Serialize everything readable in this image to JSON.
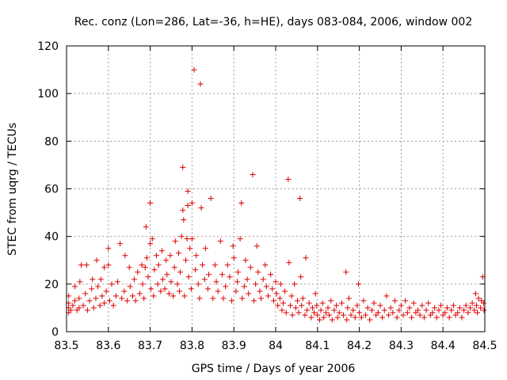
{
  "chart_data": {
    "type": "scatter",
    "title": "Rec. conz (Lon=286, Lat=-36, h=HE), days 083-084, 2006, window 002",
    "xlabel": "GPS time / Days of year 2006",
    "ylabel": "STEC from uqrg / TECUs",
    "xlim": [
      83.5,
      84.5
    ],
    "ylim": [
      0,
      120
    ],
    "grid": true,
    "marker": "+",
    "color": "#dd0000",
    "xticks": [
      83.5,
      83.6,
      83.7,
      83.8,
      83.9,
      84.0,
      84.1,
      84.2,
      84.3,
      84.4,
      84.5
    ],
    "xtick_labels": [
      "83.5",
      "83.6",
      "83.7",
      "83.8",
      "83.9",
      "84",
      "84.1",
      "84.2",
      "84.3",
      "84.4",
      "84.5"
    ],
    "yticks": [
      0,
      20,
      40,
      60,
      80,
      100,
      120
    ],
    "ytick_labels": [
      "0",
      "20",
      "40",
      "60",
      "80",
      "100",
      "120"
    ],
    "points": [
      [
        83.505,
        8
      ],
      [
        83.505,
        10
      ],
      [
        83.505,
        12
      ],
      [
        83.505,
        15
      ],
      [
        83.51,
        9
      ],
      [
        83.515,
        11
      ],
      [
        83.52,
        13
      ],
      [
        83.52,
        19
      ],
      [
        83.525,
        9
      ],
      [
        83.53,
        10
      ],
      [
        83.53,
        14
      ],
      [
        83.532,
        21
      ],
      [
        83.535,
        28
      ],
      [
        83.54,
        11
      ],
      [
        83.545,
        16
      ],
      [
        83.548,
        28
      ],
      [
        83.55,
        9
      ],
      [
        83.555,
        13
      ],
      [
        83.56,
        18
      ],
      [
        83.562,
        22
      ],
      [
        83.565,
        10
      ],
      [
        83.57,
        14
      ],
      [
        83.572,
        30
      ],
      [
        83.575,
        19
      ],
      [
        83.58,
        11
      ],
      [
        83.582,
        22
      ],
      [
        83.585,
        15
      ],
      [
        83.59,
        12
      ],
      [
        83.59,
        27
      ],
      [
        83.595,
        17
      ],
      [
        83.6,
        35
      ],
      [
        83.6,
        28
      ],
      [
        83.603,
        13
      ],
      [
        83.608,
        20
      ],
      [
        83.612,
        11
      ],
      [
        83.618,
        15
      ],
      [
        83.622,
        21
      ],
      [
        83.628,
        37
      ],
      [
        83.632,
        14
      ],
      [
        83.638,
        17
      ],
      [
        83.64,
        32
      ],
      [
        83.645,
        13
      ],
      [
        83.65,
        27
      ],
      [
        83.652,
        19
      ],
      [
        83.658,
        15
      ],
      [
        83.662,
        22
      ],
      [
        83.665,
        13
      ],
      [
        83.67,
        25
      ],
      [
        83.675,
        16
      ],
      [
        83.68,
        28
      ],
      [
        83.682,
        20
      ],
      [
        83.685,
        14
      ],
      [
        83.688,
        27
      ],
      [
        83.69,
        44
      ],
      [
        83.692,
        31
      ],
      [
        83.695,
        23
      ],
      [
        83.7,
        37
      ],
      [
        83.7,
        54
      ],
      [
        83.702,
        18
      ],
      [
        83.705,
        39
      ],
      [
        83.708,
        15
      ],
      [
        83.71,
        26
      ],
      [
        83.715,
        32
      ],
      [
        83.718,
        20
      ],
      [
        83.72,
        28
      ],
      [
        83.725,
        17
      ],
      [
        83.728,
        34
      ],
      [
        83.73,
        22
      ],
      [
        83.735,
        18
      ],
      [
        83.738,
        30
      ],
      [
        83.74,
        24
      ],
      [
        83.745,
        16
      ],
      [
        83.748,
        32
      ],
      [
        83.75,
        21
      ],
      [
        83.755,
        15
      ],
      [
        83.758,
        27
      ],
      [
        83.76,
        38
      ],
      [
        83.765,
        20
      ],
      [
        83.768,
        33
      ],
      [
        83.77,
        17
      ],
      [
        83.772,
        25
      ],
      [
        83.775,
        40
      ],
      [
        83.778,
        51
      ],
      [
        83.778,
        69
      ],
      [
        83.78,
        47
      ],
      [
        83.782,
        15
      ],
      [
        83.785,
        30
      ],
      [
        83.788,
        39
      ],
      [
        83.79,
        59
      ],
      [
        83.79,
        53
      ],
      [
        83.792,
        23
      ],
      [
        83.795,
        35
      ],
      [
        83.798,
        18
      ],
      [
        83.8,
        39
      ],
      [
        83.8,
        54
      ],
      [
        83.805,
        110
      ],
      [
        83.808,
        26
      ],
      [
        83.81,
        32
      ],
      [
        83.815,
        20
      ],
      [
        83.818,
        14
      ],
      [
        83.82,
        104
      ],
      [
        83.822,
        52
      ],
      [
        83.825,
        28
      ],
      [
        83.83,
        22
      ],
      [
        83.832,
        35
      ],
      [
        83.838,
        18
      ],
      [
        83.84,
        24
      ],
      [
        83.845,
        56
      ],
      [
        83.85,
        14
      ],
      [
        83.855,
        28
      ],
      [
        83.858,
        21
      ],
      [
        83.862,
        17
      ],
      [
        83.868,
        38
      ],
      [
        83.872,
        24
      ],
      [
        83.875,
        14
      ],
      [
        83.88,
        19
      ],
      [
        83.885,
        28
      ],
      [
        83.89,
        23
      ],
      [
        83.895,
        13
      ],
      [
        83.898,
        36
      ],
      [
        83.9,
        31
      ],
      [
        83.905,
        17
      ],
      [
        83.908,
        21
      ],
      [
        83.91,
        25
      ],
      [
        83.915,
        39
      ],
      [
        83.918,
        54
      ],
      [
        83.92,
        14
      ],
      [
        83.925,
        19
      ],
      [
        83.928,
        30
      ],
      [
        83.932,
        22
      ],
      [
        83.935,
        16
      ],
      [
        83.94,
        27
      ],
      [
        83.945,
        66
      ],
      [
        83.948,
        13
      ],
      [
        83.952,
        20
      ],
      [
        83.955,
        36
      ],
      [
        83.958,
        25
      ],
      [
        83.962,
        17
      ],
      [
        83.965,
        14
      ],
      [
        83.97,
        22
      ],
      [
        83.975,
        28
      ],
      [
        83.978,
        19
      ],
      [
        83.982,
        15
      ],
      [
        83.988,
        24
      ],
      [
        83.992,
        18
      ],
      [
        83.995,
        13
      ],
      [
        84.0,
        21
      ],
      [
        84.002,
        16
      ],
      [
        84.005,
        11
      ],
      [
        84.01,
        14
      ],
      [
        84.012,
        20
      ],
      [
        84.015,
        9
      ],
      [
        84.018,
        12
      ],
      [
        84.022,
        17
      ],
      [
        84.025,
        8
      ],
      [
        84.03,
        64
      ],
      [
        84.032,
        29
      ],
      [
        84.035,
        11
      ],
      [
        84.038,
        15
      ],
      [
        84.04,
        7
      ],
      [
        84.045,
        20
      ],
      [
        84.048,
        10
      ],
      [
        84.052,
        13
      ],
      [
        84.055,
        8
      ],
      [
        84.058,
        56
      ],
      [
        84.06,
        23
      ],
      [
        84.062,
        11
      ],
      [
        84.065,
        14
      ],
      [
        84.07,
        7
      ],
      [
        84.072,
        31
      ],
      [
        84.075,
        9
      ],
      [
        84.08,
        12
      ],
      [
        84.085,
        6
      ],
      [
        84.088,
        10
      ],
      [
        84.092,
        8
      ],
      [
        84.095,
        16
      ],
      [
        84.098,
        11
      ],
      [
        84.1,
        7
      ],
      [
        84.105,
        5
      ],
      [
        84.108,
        9
      ],
      [
        84.112,
        12
      ],
      [
        84.115,
        6
      ],
      [
        84.12,
        8
      ],
      [
        84.125,
        10
      ],
      [
        84.128,
        7
      ],
      [
        84.132,
        13
      ],
      [
        84.135,
        5
      ],
      [
        84.14,
        9
      ],
      [
        84.145,
        11
      ],
      [
        84.148,
        6
      ],
      [
        84.152,
        8
      ],
      [
        84.158,
        12
      ],
      [
        84.162,
        7
      ],
      [
        84.168,
        25
      ],
      [
        84.17,
        5
      ],
      [
        84.172,
        10
      ],
      [
        84.175,
        14
      ],
      [
        84.18,
        7
      ],
      [
        84.185,
        9
      ],
      [
        84.19,
        6
      ],
      [
        84.195,
        11
      ],
      [
        84.198,
        20
      ],
      [
        84.2,
        8
      ],
      [
        84.205,
        6
      ],
      [
        84.21,
        13
      ],
      [
        84.215,
        7
      ],
      [
        84.22,
        10
      ],
      [
        84.225,
        5
      ],
      [
        84.23,
        9
      ],
      [
        84.235,
        12
      ],
      [
        84.24,
        7
      ],
      [
        84.245,
        8
      ],
      [
        84.25,
        11
      ],
      [
        84.255,
        6
      ],
      [
        84.26,
        9
      ],
      [
        84.265,
        15
      ],
      [
        84.27,
        7
      ],
      [
        84.275,
        10
      ],
      [
        84.28,
        8
      ],
      [
        84.285,
        13
      ],
      [
        84.29,
        6
      ],
      [
        84.295,
        9
      ],
      [
        84.3,
        11
      ],
      [
        84.305,
        7
      ],
      [
        84.31,
        13
      ],
      [
        84.315,
        8
      ],
      [
        84.32,
        10
      ],
      [
        84.325,
        6
      ],
      [
        84.33,
        12
      ],
      [
        84.335,
        8
      ],
      [
        84.34,
        9
      ],
      [
        84.345,
        7
      ],
      [
        84.35,
        11
      ],
      [
        84.355,
        6
      ],
      [
        84.36,
        9
      ],
      [
        84.365,
        12
      ],
      [
        84.37,
        7
      ],
      [
        84.375,
        8
      ],
      [
        84.38,
        10
      ],
      [
        84.385,
        6
      ],
      [
        84.39,
        9
      ],
      [
        84.395,
        11
      ],
      [
        84.4,
        7
      ],
      [
        84.405,
        8
      ],
      [
        84.41,
        10
      ],
      [
        84.415,
        6
      ],
      [
        84.42,
        9
      ],
      [
        84.425,
        11
      ],
      [
        84.43,
        7
      ],
      [
        84.435,
        8
      ],
      [
        84.44,
        10
      ],
      [
        84.445,
        6
      ],
      [
        84.45,
        9
      ],
      [
        84.455,
        11
      ],
      [
        84.46,
        8
      ],
      [
        84.465,
        10
      ],
      [
        84.47,
        12
      ],
      [
        84.475,
        9
      ],
      [
        84.478,
        16
      ],
      [
        84.48,
        11
      ],
      [
        84.482,
        8
      ],
      [
        84.485,
        14
      ],
      [
        84.49,
        10
      ],
      [
        84.492,
        13
      ],
      [
        84.495,
        23
      ],
      [
        84.497,
        12
      ],
      [
        84.498,
        9
      ]
    ]
  }
}
